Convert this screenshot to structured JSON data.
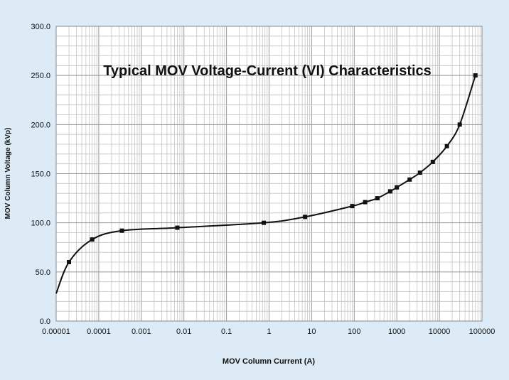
{
  "chart_data": {
    "type": "line",
    "title": "Typical MOV Voltage-Current (VI)  Characteristics",
    "xlabel": "MOV Column Current (A)",
    "ylabel": "MOV Column Voltage  (kVp)",
    "x_scale": "log",
    "xlim": [
      1e-05,
      100000
    ],
    "ylim": [
      0,
      300
    ],
    "x_ticks": [
      "0.00001",
      "0.0001",
      "0.001",
      "0.01",
      "0.1",
      "1",
      "10",
      "100",
      "1000",
      "10000",
      "100000"
    ],
    "y_ticks": [
      "0.0",
      "50.0",
      "100.0",
      "150.0",
      "200.0",
      "250.0",
      "300.0"
    ],
    "grid": true,
    "series": [
      {
        "color": "#111111",
        "points": [
          {
            "x": 2e-05,
            "y": 60
          },
          {
            "x": 7e-05,
            "y": 83
          },
          {
            "x": 0.00035,
            "y": 92
          },
          {
            "x": 0.007,
            "y": 95
          },
          {
            "x": 0.75,
            "y": 100
          },
          {
            "x": 7,
            "y": 106
          },
          {
            "x": 90,
            "y": 117
          },
          {
            "x": 180,
            "y": 121
          },
          {
            "x": 350,
            "y": 125
          },
          {
            "x": 700,
            "y": 132
          },
          {
            "x": 1000,
            "y": 136
          },
          {
            "x": 2000,
            "y": 144
          },
          {
            "x": 3500,
            "y": 151
          },
          {
            "x": 7000,
            "y": 162
          },
          {
            "x": 15000,
            "y": 178
          },
          {
            "x": 30000,
            "y": 200
          },
          {
            "x": 70000,
            "y": 250
          }
        ],
        "curve_start": {
          "x": 1e-05,
          "y": 28
        }
      }
    ]
  }
}
